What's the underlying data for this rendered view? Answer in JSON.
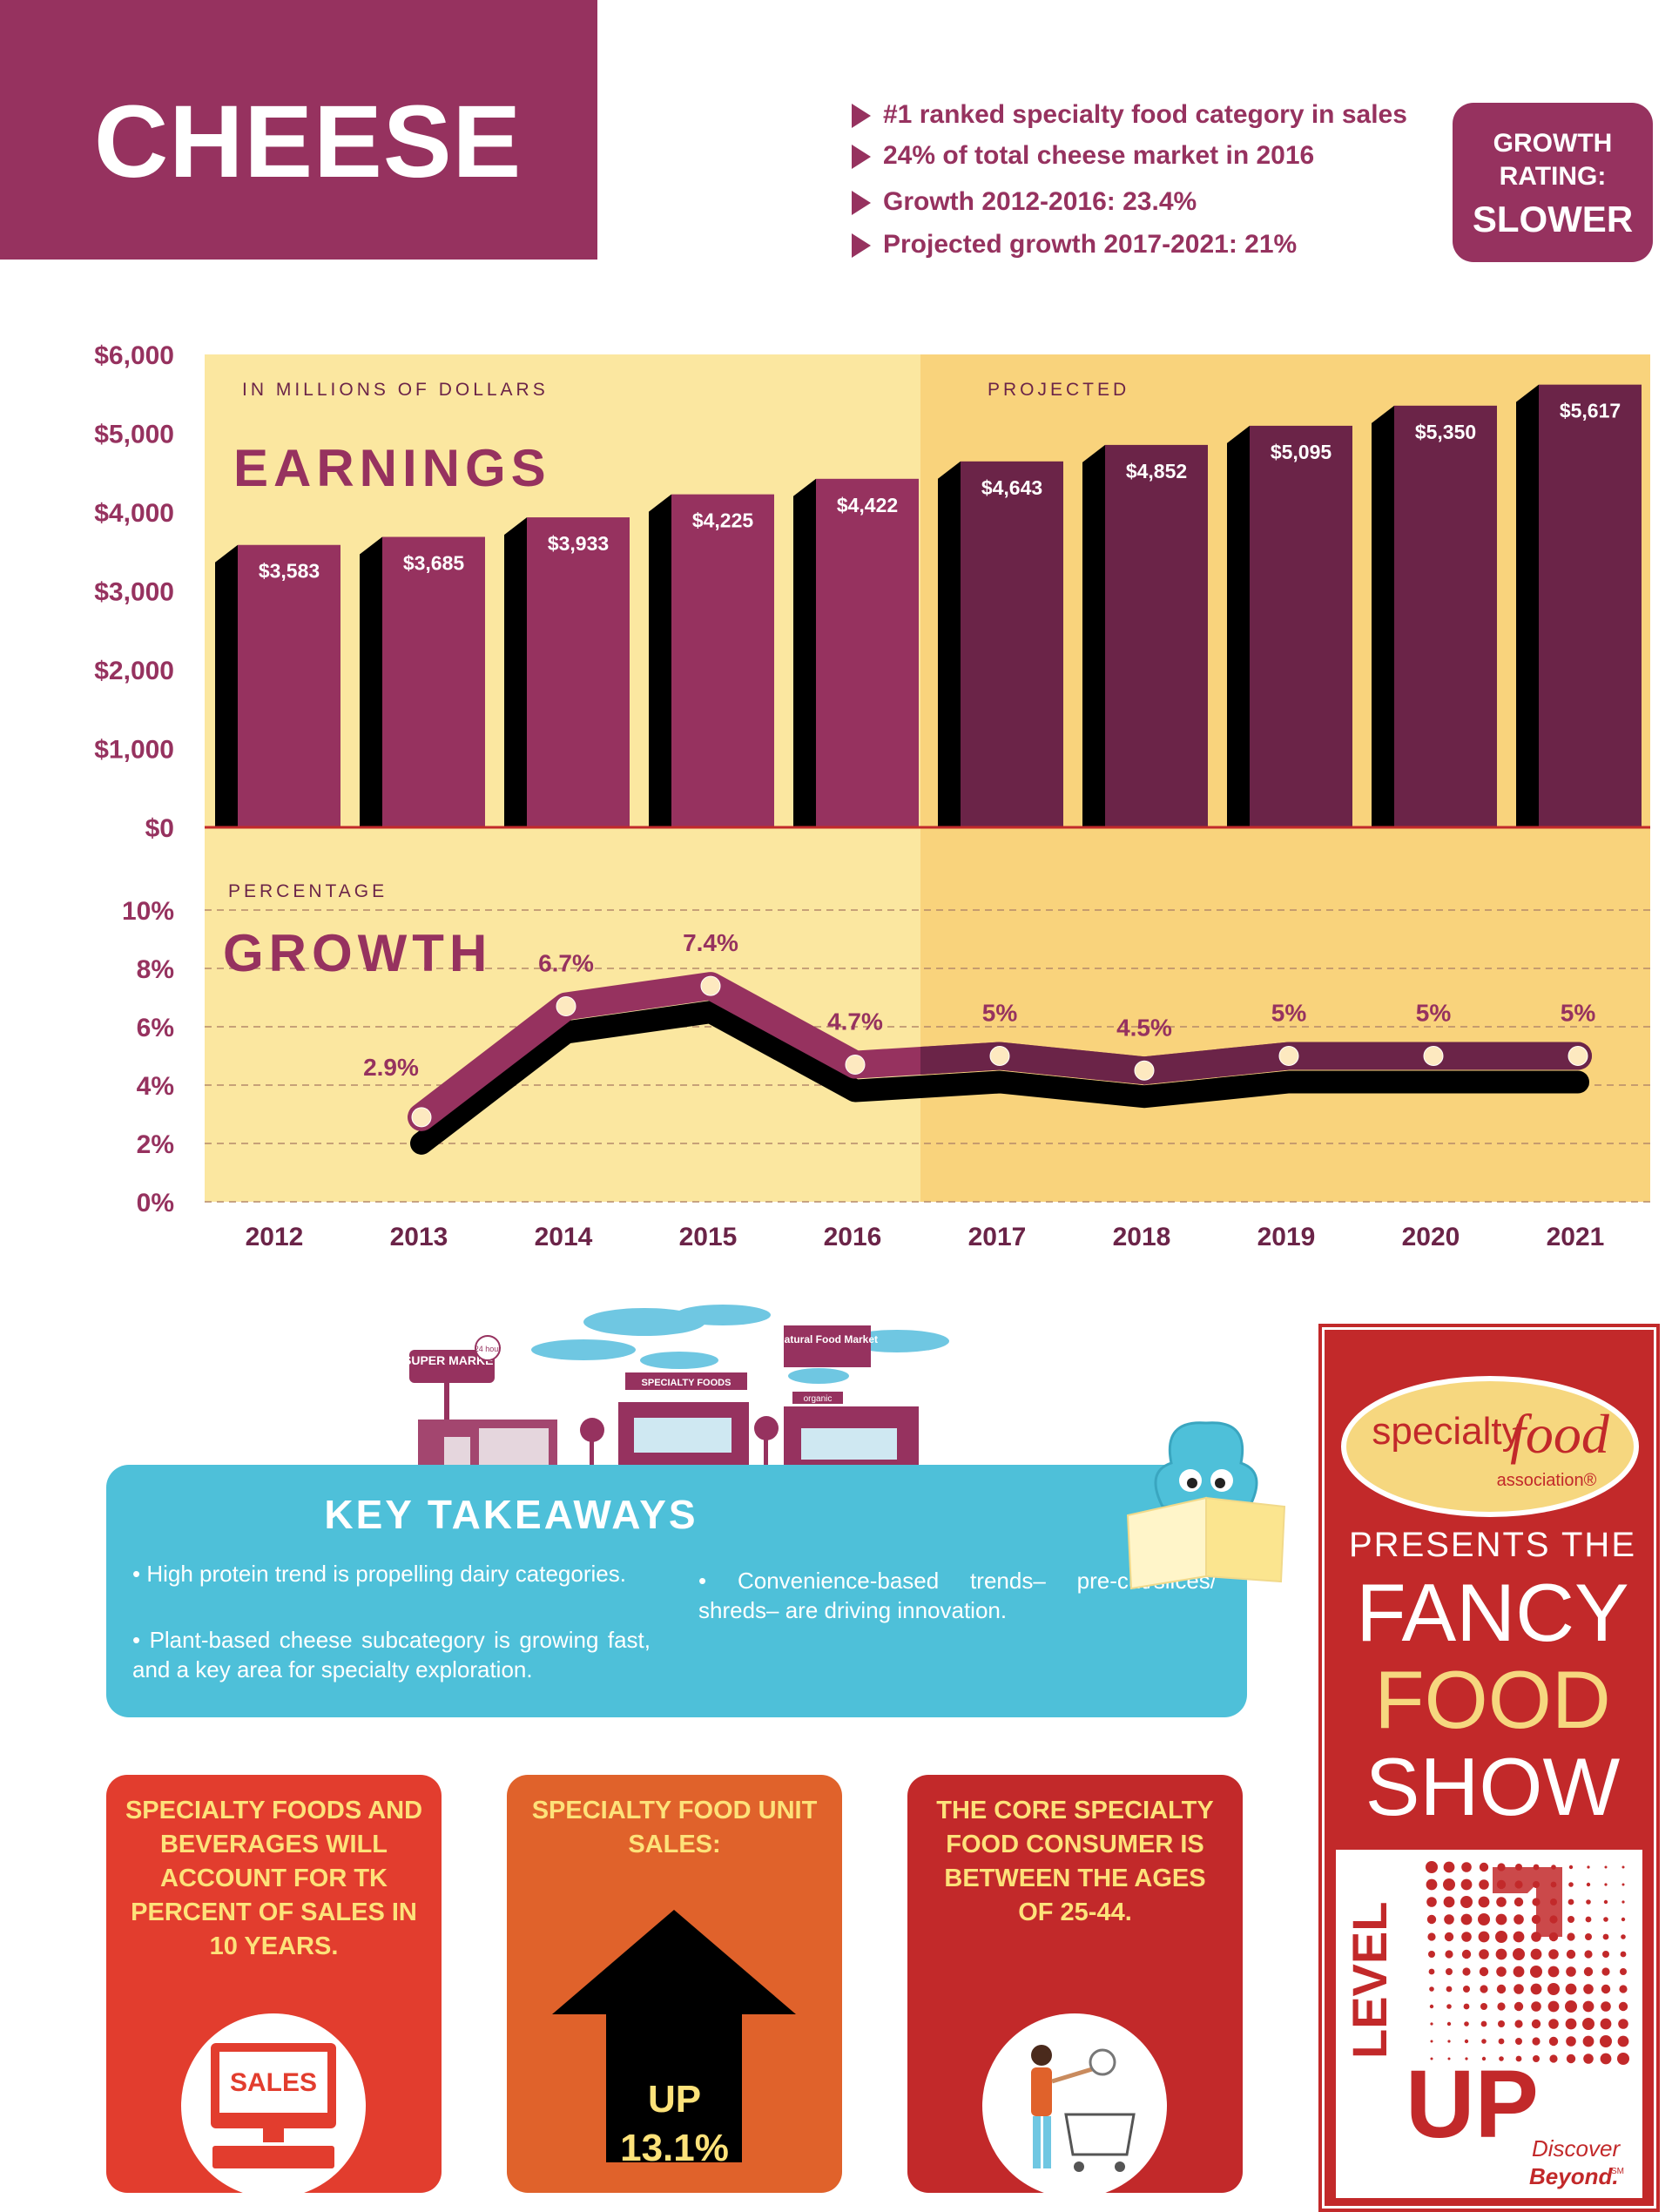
{
  "header": {
    "title": "CHEESE",
    "bullets": [
      "#1 ranked specialty food category in sales",
      "24% of total cheese market in 2016",
      "Growth 2012-2016: 23.4%",
      "Projected growth 2017-2021: 21%"
    ],
    "rating_label": "GROWTH RATING:",
    "rating_value": "SLOWER"
  },
  "chart_data": [
    {
      "type": "bar",
      "title": "EARNINGS",
      "subtitle": "IN MILLIONS OF DOLLARS",
      "projected_label": "PROJECTED",
      "categories": [
        "2012",
        "2013",
        "2014",
        "2015",
        "2016",
        "2017",
        "2018",
        "2019",
        "2020",
        "2021"
      ],
      "values": [
        3583,
        3685,
        3933,
        4225,
        4422,
        4643,
        4852,
        5095,
        5350,
        5617
      ],
      "value_labels": [
        "$3,583",
        "$3,685",
        "$3,933",
        "$4,225",
        "$4,422",
        "$4,643",
        "$4,852",
        "$5,095",
        "$5,350",
        "$5,617"
      ],
      "projected_from": "2017",
      "ylim": [
        0,
        6000
      ],
      "yticks": [
        0,
        1000,
        2000,
        3000,
        4000,
        5000,
        6000
      ],
      "ytick_labels": [
        "$0",
        "$1,000",
        "$2,000",
        "$3,000",
        "$4,000",
        "$5,000",
        "$6,000"
      ]
    },
    {
      "type": "line",
      "title": "GROWTH",
      "subtitle": "PERCENTAGE",
      "x": [
        "2013",
        "2014",
        "2015",
        "2016",
        "2017",
        "2018",
        "2019",
        "2020",
        "2021"
      ],
      "values": [
        2.9,
        6.7,
        7.4,
        4.7,
        5,
        4.5,
        5,
        5,
        5
      ],
      "value_labels": [
        "2.9%",
        "6.7%",
        "7.4%",
        "4.7%",
        "5%",
        "4.5%",
        "5%",
        "5%",
        "5%"
      ],
      "ylim": [
        0,
        10
      ],
      "yticks": [
        0,
        2,
        4,
        6,
        8,
        10
      ],
      "ytick_labels": [
        "0%",
        "2%",
        "4%",
        "6%",
        "8%",
        "10%"
      ],
      "grid": true
    }
  ],
  "illustration": {
    "supermarket_sign": "SUPER MARKET",
    "hours_badge": "24 hour",
    "specialty_sign": "SPECIALTY FOODS",
    "natural_sign": "Natural Food Market",
    "organic_sign": "organic"
  },
  "takeaways": {
    "title": "KEY TAKEAWAYS",
    "items": [
      "High protein trend is propelling dairy categories.",
      "Plant-based cheese subcategory is growing fast, and a key area for specialty exploration.",
      "Convenience-based trends– pre-cut/slices/ shreds– are driving innovation."
    ]
  },
  "cards": {
    "card1_text": "SPECIALTY FOODS AND BEVERAGES WILL ACCOUNT FOR TK PERCENT OF SALES IN 10 YEARS.",
    "card1_screen": "SALES",
    "card2_text": "SPECIALTY FOOD UNIT SALES:",
    "card2_arrow_line1": "UP",
    "card2_arrow_line2": "13.1%",
    "card3_text": "THE CORE SPECIALTY FOOD CONSUMER IS BETWEEN THE AGES OF 25-44."
  },
  "sfa": {
    "logo_word1": "specialty",
    "logo_word2": "food",
    "logo_word3": "association®",
    "presents": "PRESENTS THE",
    "show1": "FANCY",
    "show2": "FOOD",
    "show3": "SHOW",
    "level": "LEVEL",
    "up": "UP",
    "discover": "Discover",
    "beyond": "Beyond.",
    "sm": "SM"
  },
  "colors": {
    "plum": "#96325f",
    "dark_plum": "#6b2448",
    "chart_bg": "#fbe7a0",
    "projected_bg": "#f9d37c",
    "teal": "#4ec0d9",
    "red": "#e23d2e",
    "orange": "#e0622b",
    "brick": "#c2292a",
    "yellow_text": "#fde27a"
  }
}
